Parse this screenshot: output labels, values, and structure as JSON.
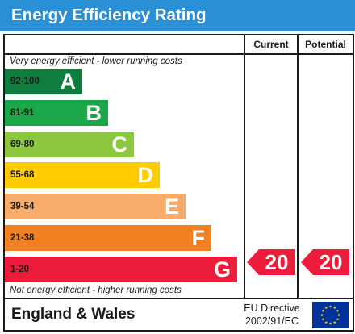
{
  "title": "Energy Efficiency Rating",
  "columns": {
    "current": "Current",
    "potential": "Potential"
  },
  "notes": {
    "top": "Very energy efficient - lower running costs",
    "bottom": "Not energy efficient - higher running costs"
  },
  "chart_data": {
    "type": "bar",
    "title": "Energy Efficiency Rating",
    "bands": [
      {
        "letter": "A",
        "range": "92-100",
        "color": "#0f7d3e"
      },
      {
        "letter": "B",
        "range": "81-91",
        "color": "#1aa84a"
      },
      {
        "letter": "C",
        "range": "69-80",
        "color": "#8dc63f"
      },
      {
        "letter": "D",
        "range": "55-68",
        "color": "#ffcc00"
      },
      {
        "letter": "E",
        "range": "39-54",
        "color": "#f7ac6b"
      },
      {
        "letter": "F",
        "range": "21-38",
        "color": "#f3801f"
      },
      {
        "letter": "G",
        "range": "1-20",
        "color": "#ed1c3a"
      }
    ],
    "current": {
      "value": "20",
      "band": "G"
    },
    "potential": {
      "value": "20",
      "band": "G"
    }
  },
  "footer": {
    "region": "England & Wales",
    "directive_line1": "EU Directive",
    "directive_line2": "2002/91/EC"
  },
  "colors": {
    "title_bar": "#2a8fd4",
    "rating_arrow": "#ed1c3a",
    "eu_flag": "#003399",
    "eu_stars": "#ffdd00"
  },
  "icons": {
    "flag": "eu-flag-icon"
  }
}
